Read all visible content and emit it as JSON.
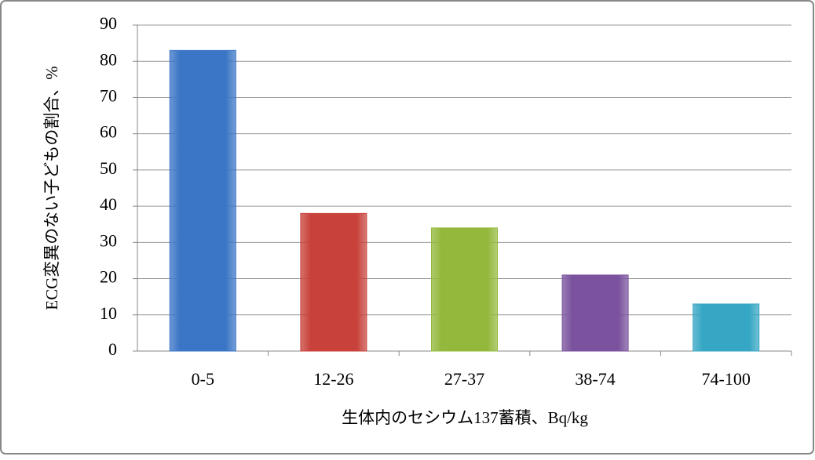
{
  "chart_data": {
    "type": "bar",
    "x_label": "生体内のセシウム137蓄積、Bq/kg",
    "y_label": "ECG変異のない子どもの割合、%",
    "categories": [
      "0-5",
      "12-26",
      "27-37",
      "38-74",
      "74-100"
    ],
    "values": [
      83,
      38,
      34,
      21,
      13
    ],
    "colors": [
      "#3b76c6",
      "#c8423b",
      "#94b83c",
      "#7a529d",
      "#35a6c3"
    ],
    "ylim": [
      0,
      90
    ],
    "yticks": [
      0,
      10,
      20,
      30,
      40,
      50,
      60,
      70,
      80,
      90
    ],
    "grid": true
  }
}
